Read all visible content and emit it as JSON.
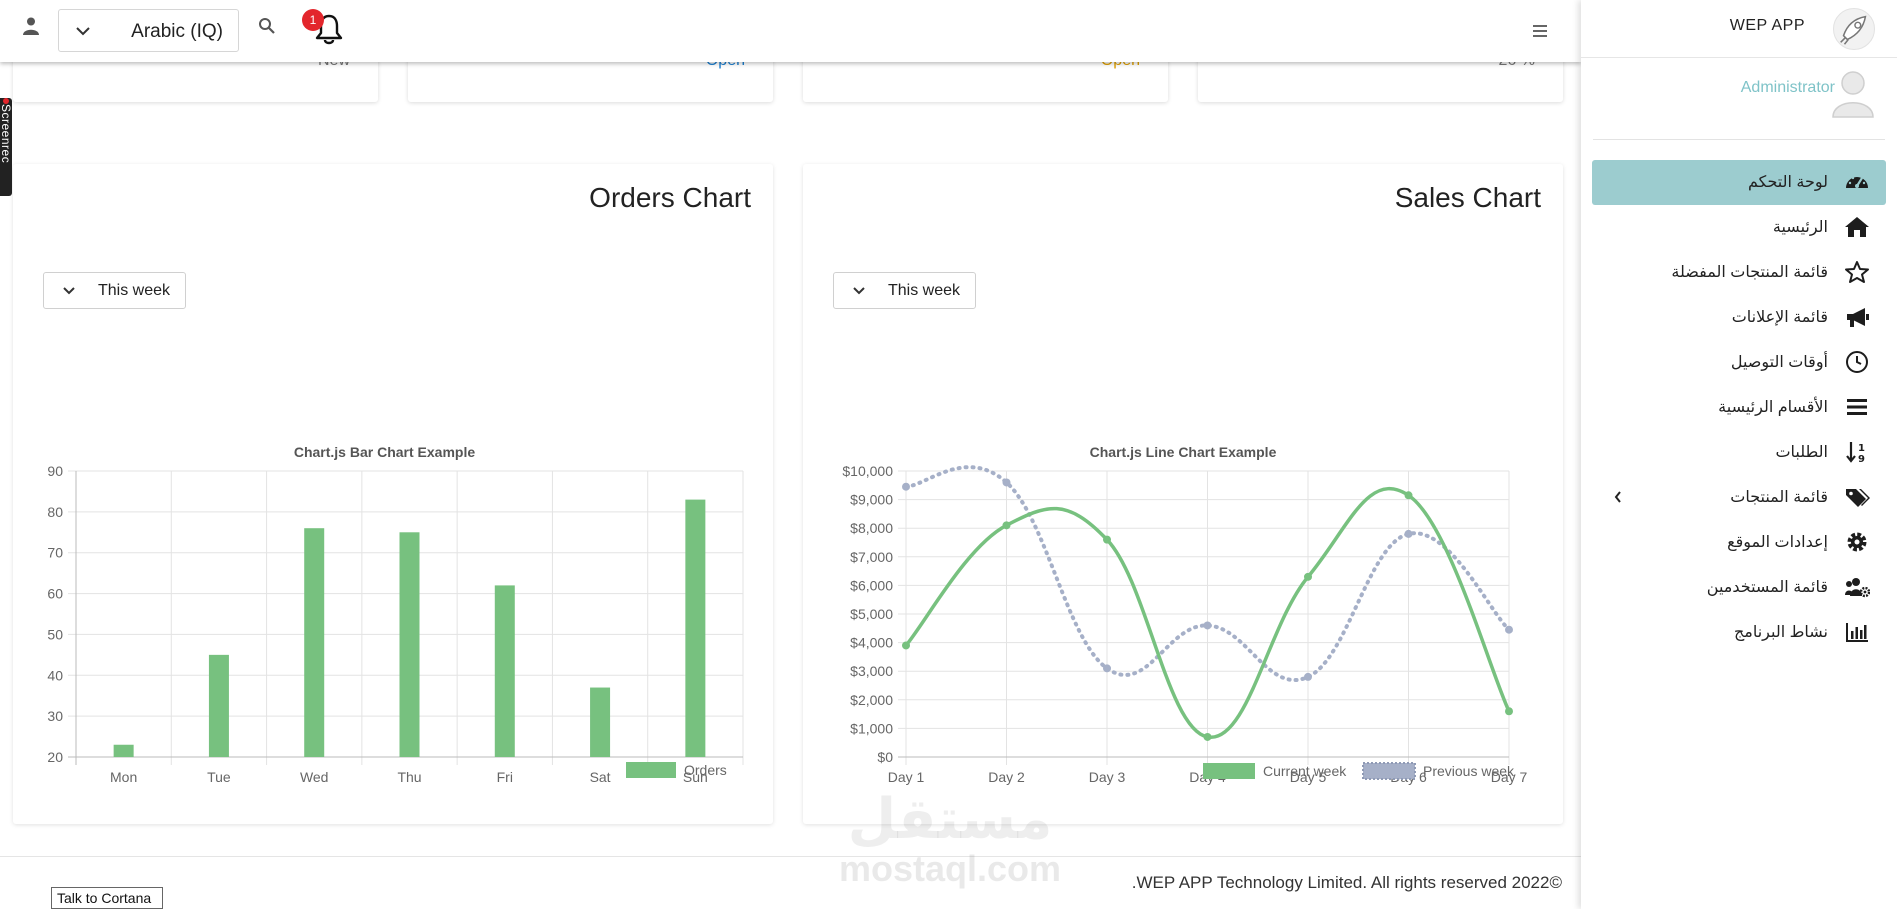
{
  "topbar": {
    "language": "Arabic (IQ)",
    "notification_count": "1"
  },
  "stat_cards": [
    "New",
    "Open",
    "Open",
    "26 %"
  ],
  "orders_card": {
    "title": "Orders Chart",
    "period": "This week"
  },
  "sales_card": {
    "title": "Sales Chart",
    "period": "This week"
  },
  "chart_data": [
    {
      "type": "bar",
      "title": "Chart.js Bar Chart Example",
      "categories": [
        "Mon",
        "Tue",
        "Wed",
        "Thu",
        "Fri",
        "Sat",
        "Sun"
      ],
      "series": [
        {
          "name": "Orders",
          "values": [
            23,
            45,
            76,
            75,
            62,
            37,
            83
          ],
          "color": "#77c17f"
        }
      ],
      "ylim": [
        20,
        90
      ],
      "yticks": [
        20,
        30,
        40,
        50,
        60,
        70,
        80,
        90
      ],
      "grid": true,
      "legend": "bottom-right"
    },
    {
      "type": "line",
      "title": "Chart.js Line Chart Example",
      "categories": [
        "Day 1",
        "Day 2",
        "Day 3",
        "Day 4",
        "Day 5",
        "Day 6",
        "Day 7"
      ],
      "series": [
        {
          "name": "Current week",
          "values": [
            3900,
            8100,
            7600,
            700,
            6300,
            9150,
            1600
          ],
          "color": "#77c17f",
          "style": "solid"
        },
        {
          "name": "Previous week",
          "values": [
            9450,
            9600,
            3100,
            4600,
            2800,
            7800,
            4450
          ],
          "color": "#a6b0c8",
          "style": "dotted"
        }
      ],
      "ylim": [
        0,
        10000
      ],
      "ytick_labels": [
        "$0",
        "$1,000",
        "$2,000",
        "$3,000",
        "$4,000",
        "$5,000",
        "$6,000",
        "$7,000",
        "$8,000",
        "$9,000",
        "$10,000"
      ],
      "grid": true,
      "legend": "bottom-right"
    }
  ],
  "footer": {
    "copyright": ".WEP APP Technology Limited. All rights reserved 2022©"
  },
  "taskbar": {
    "cortana": "Talk to Cortana"
  },
  "screen_tag": "Screenrec",
  "watermark": {
    "arabic": "مستقل",
    "latin": "mostaql.com"
  },
  "sidebar": {
    "app_name": "WEP APP",
    "user_role": "Administrator",
    "items": [
      {
        "label": "لوحة التحكم",
        "icon": "dashboard-gauge-icon"
      },
      {
        "label": "الرئيسية",
        "icon": "home-icon"
      },
      {
        "label": "قائمة المنتجات المفضلة",
        "icon": "star-icon"
      },
      {
        "label": "قائمة الإعلانات",
        "icon": "megaphone-icon"
      },
      {
        "label": "أوقات التوصيل",
        "icon": "clock-icon"
      },
      {
        "label": "الأقسام الرئيسية",
        "icon": "bars-icon"
      },
      {
        "label": "الطلبات",
        "icon": "sort-icon"
      },
      {
        "label": "قائمة المنتجات",
        "icon": "tags-icon"
      },
      {
        "label": "إعدادات الموقع",
        "icon": "gear-icon"
      },
      {
        "label": "قائمة المستخدمين",
        "icon": "users-cog-icon"
      },
      {
        "label": "نشاط البرنامج",
        "icon": "bar-chart-icon"
      }
    ]
  }
}
